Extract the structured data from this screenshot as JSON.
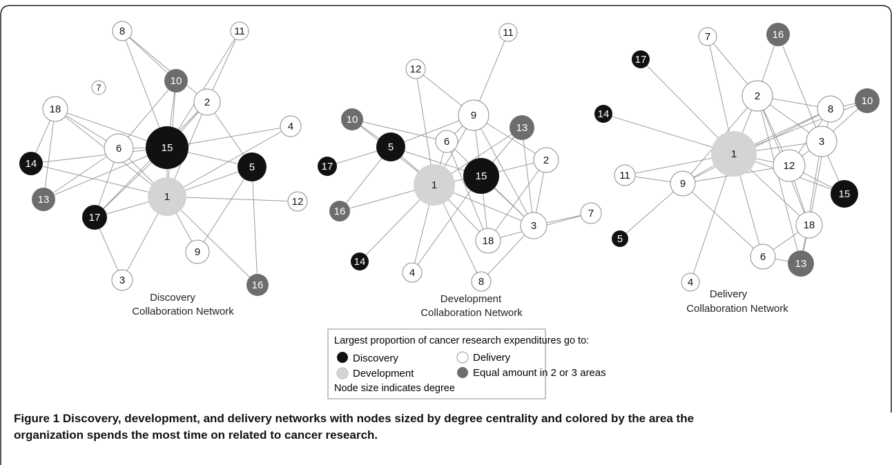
{
  "networks": [
    {
      "title": [
        "Discovery",
        "Collaboration Network"
      ],
      "nodes": [
        "8",
        "11",
        "10",
        "7",
        "18",
        "2",
        "4",
        "6",
        "15",
        "14",
        "5",
        "13",
        "1",
        "12",
        "17",
        "9",
        "3",
        "16"
      ]
    },
    {
      "title": [
        "Development",
        "Collaboration Network"
      ],
      "nodes": [
        "11",
        "12",
        "9",
        "10",
        "13",
        "6",
        "5",
        "2",
        "17",
        "15",
        "1",
        "16",
        "7",
        "3",
        "18",
        "14",
        "4",
        "8"
      ]
    },
    {
      "title": [
        "Delivery",
        "Collaboration Network"
      ],
      "nodes": [
        "7",
        "16",
        "17",
        "2",
        "10",
        "8",
        "14",
        "3",
        "1",
        "12",
        "11",
        "9",
        "15",
        "18",
        "5",
        "6",
        "13",
        "4"
      ]
    }
  ],
  "legend": {
    "title": "Largest proportion of cancer research expenditures go to:",
    "items": [
      "Discovery",
      "Delivery",
      "Development",
      "Equal amount in 2 or 3 areas"
    ],
    "note": "Node size indicates degree"
  },
  "caption": {
    "label": "Figure 1",
    "lines": [
      " Discovery, development, and delivery networks with nodes sized by degree centrality and colored by the area the",
      "organization spends the most time on related to cancer research."
    ]
  }
}
